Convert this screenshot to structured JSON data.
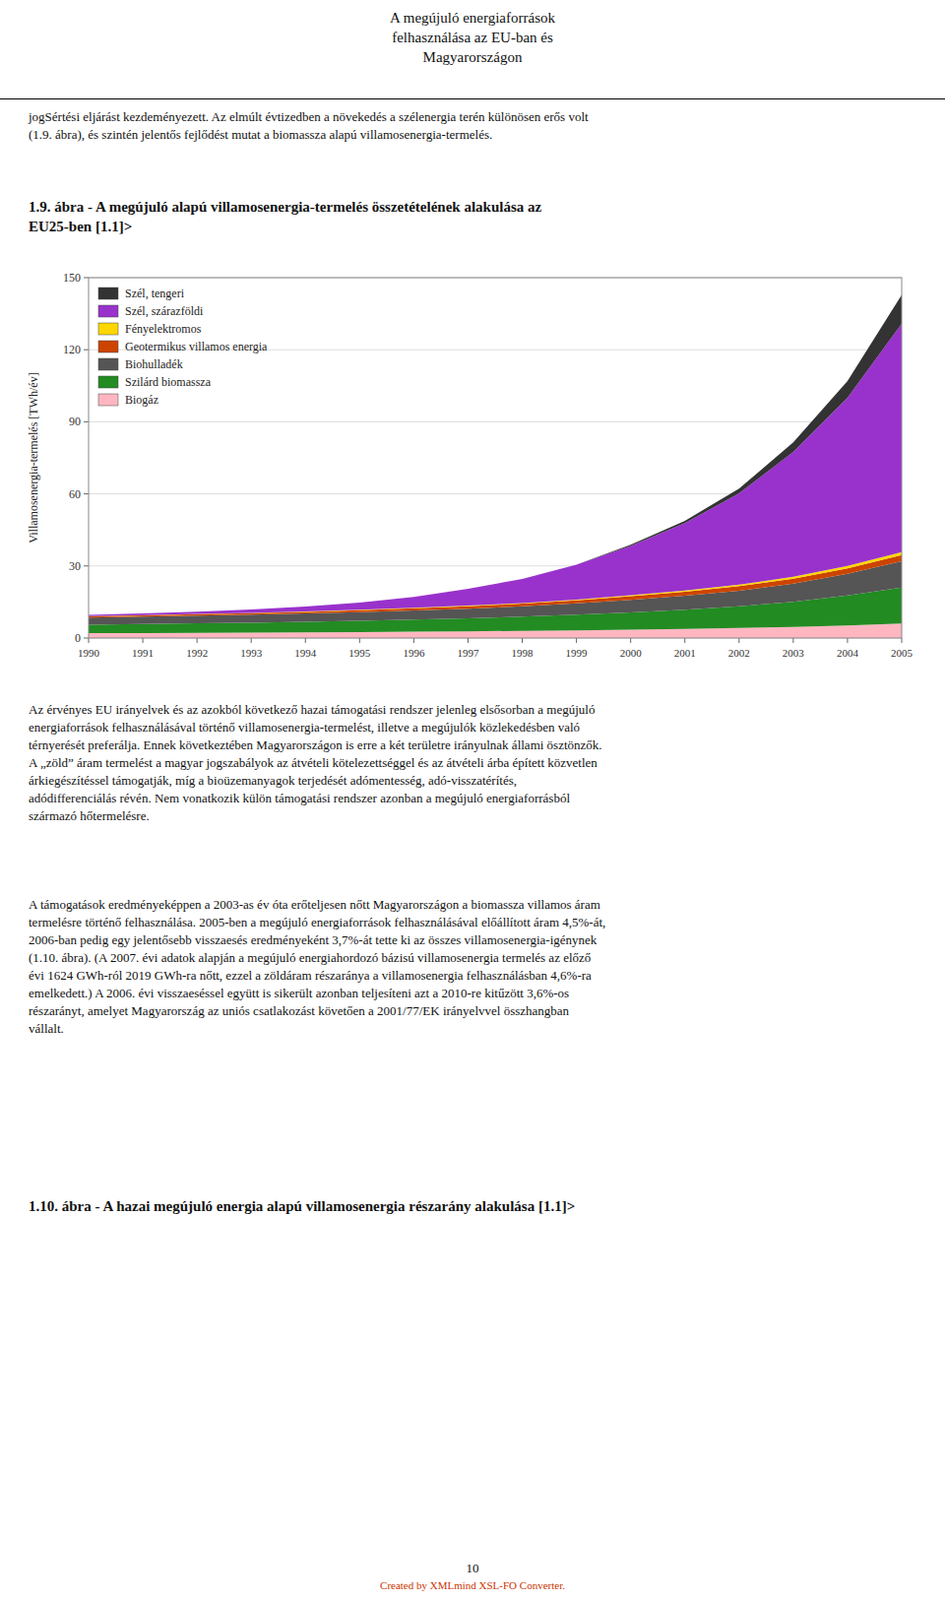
{
  "page": {
    "header": "A megújuló energiaforrások\nfelhasználása az EU-ban és\nMagyarországon",
    "intro": "jogSértési eljárást kezdeményezett. Az elmúlt évtizedben a növekedés a szélenergia terén különösen erős volt\n(1.9. ábra), és szintén jelentős fejlődést mutat a biomassza alapú villamosenergia-termelés.",
    "body_text1": [
      "Az érvényes EU irányelvek és az azokból következő hazai támogatási rendszer jelenleg elsősorban a megújuló",
      "energiaforrások felhasználásával történő villamosenergia-termelést, illetve a megújulók közlekedésben való",
      "térnyerését preferálja. Ennek következtében Magyarországon is erre a két területre irányulnak állami ösztönzők.",
      "A „zöld” áram termelést a magyar jogszabályok az átvételi kötelezettséggel és az átvételi árba épített közvetlen",
      "árkiegészítéssel támogatják, míg a bioüzemanyagok terjedését adómentesség, adó-visszatérítés,",
      "adódifferenciálás révén. Nem vonatkozik külön támogatási rendszer azonban a megújuló energiaforrásból",
      "származó hőtermelésre."
    ],
    "body_text2": [
      "A támogatások eredményeképpen a 2003-as év óta erőteljesen nőtt Magyarországon a biomassza villamos áram",
      "termelésre történő felhasználása. 2005-ben a megújuló energiaforrások felhasználásával előállított áram 4,5%-át,",
      "2006-ban pedig egy jelentősebb visszaesés eredményeként 3,7%-át tette ki az összes villamosenergia-igénynek",
      "(1.10. ábra). (A 2007. évi adatok alapján a megújuló energiahordozó bázisú villamosenergia termelés az előző",
      "évi 1624 GWh-ról 2019 GWh-ra nőtt, ezzel a zöldáram részaránya a villamosenergia felhasználásban 4,6%-ra",
      "emelkedett.) A 2006. évi visszaeséssel együtt is sikerült azonban teljesíteni azt a 2010-re kitűzött 3,6%-os",
      "részarányt, amelyet Magyarország az uniós csatlakozást követően a 2001/77/EK irányelvvel összhangban",
      "vállalt."
    ],
    "section_title": "1.10. ábra - A hazai megújuló energia alapú villamosenergia részarány alakulása [1.1]>",
    "page_number": "10",
    "footer": "Created by XMLmind XSL-FO Converter.",
    "footer_color": "#cc3300"
  },
  "chart_data": {
    "type": "area",
    "stacked": true,
    "title": "1.9. ábra - A megújuló alapú villamosenergia-termelés összetételének alakulása az\nEU25-ben [1.1]>",
    "ylabel": "Villamosenergia-termelés [TWh/év]",
    "x": [
      1990,
      1991,
      1992,
      1993,
      1994,
      1995,
      1996,
      1997,
      1998,
      1999,
      2000,
      2001,
      2002,
      2003,
      2004,
      2005
    ],
    "xlim": [
      1990,
      2005
    ],
    "xticks": [
      1990,
      1991,
      1992,
      1993,
      1994,
      1995,
      1996,
      1997,
      1998,
      1999,
      2000,
      2001,
      2002,
      2003,
      2004,
      2005
    ],
    "ylim": [
      0,
      150
    ],
    "yticks": [
      0,
      30,
      60,
      90,
      120,
      150
    ],
    "grid": true,
    "legend": "upper left",
    "series": [
      {
        "name": "Biogáz",
        "color": "#ffb6c1",
        "values": [
          2.0,
          2.1,
          2.2,
          2.3,
          2.4,
          2.5,
          2.7,
          2.8,
          3.0,
          3.2,
          3.5,
          3.8,
          4.2,
          4.6,
          5.2,
          6.0
        ]
      },
      {
        "name": "Szilárd biomassza",
        "color": "#228B22",
        "values": [
          3.5,
          3.7,
          3.9,
          4.1,
          4.4,
          4.7,
          5.0,
          5.4,
          5.9,
          6.5,
          7.2,
          8.0,
          9.0,
          10.5,
          12.5,
          15.0
        ]
      },
      {
        "name": "Biohulladék",
        "color": "#555555",
        "values": [
          3.0,
          3.1,
          3.2,
          3.3,
          3.4,
          3.6,
          3.8,
          4.0,
          4.3,
          4.7,
          5.2,
          5.8,
          6.5,
          7.5,
          9.0,
          11.0
        ]
      },
      {
        "name": "Geotermikus villamos energia",
        "color": "#cc4400",
        "values": [
          0.5,
          0.5,
          0.6,
          0.6,
          0.7,
          0.8,
          0.9,
          1.0,
          1.1,
          1.3,
          1.5,
          1.7,
          1.9,
          2.1,
          2.3,
          2.5
        ]
      },
      {
        "name": "Fényelektromos",
        "color": "#FFD700",
        "values": [
          0.1,
          0.1,
          0.1,
          0.1,
          0.2,
          0.2,
          0.2,
          0.3,
          0.3,
          0.3,
          0.4,
          0.5,
          0.6,
          0.8,
          1.0,
          1.3
        ]
      },
      {
        "name": "Szél, szárazföldi",
        "color": "#9932CC",
        "values": [
          0.5,
          0.7,
          1.0,
          1.5,
          2.0,
          3.0,
          4.5,
          7.0,
          10.0,
          14.5,
          20.5,
          28.0,
          38.0,
          52.0,
          70.0,
          95.0
        ]
      },
      {
        "name": "Szél, tengeri",
        "color": "#333333",
        "values": [
          0.0,
          0.0,
          0.0,
          0.0,
          0.0,
          0.0,
          0.0,
          0.0,
          0.0,
          0.0,
          0.5,
          1.0,
          2.0,
          4.0,
          7.0,
          12.0
        ]
      }
    ]
  }
}
